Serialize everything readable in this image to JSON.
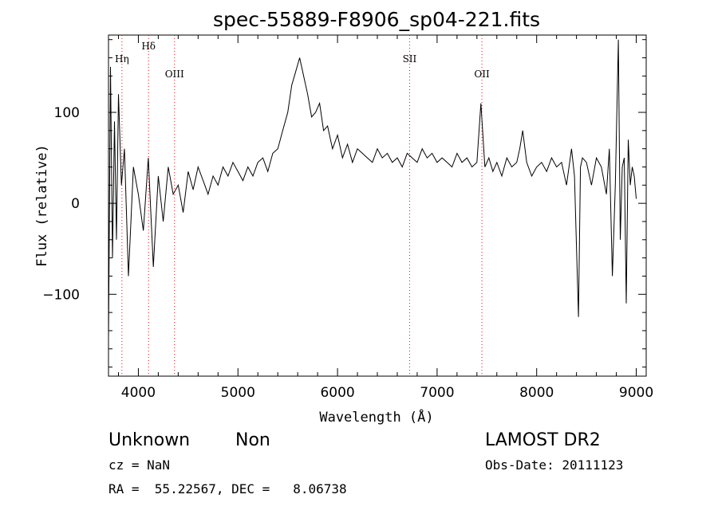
{
  "chart_data": {
    "type": "line",
    "title": "spec-55889-F8906_sp04-221.fits",
    "xlabel": "Wavelength (Å)",
    "ylabel": "Flux (relative)",
    "xlim": [
      3700,
      9100
    ],
    "ylim": [
      -190,
      185
    ],
    "x_ticks": [
      4000,
      5000,
      6000,
      7000,
      8000,
      9000
    ],
    "y_ticks": [
      -100,
      0,
      100
    ],
    "grid": false,
    "line_color": "#000000",
    "marker_color": "#ff0000",
    "series": [
      {
        "x": [
          3700,
          3720,
          3740,
          3760,
          3780,
          3800,
          3830,
          3860,
          3900,
          3950,
          4000,
          4050,
          4100,
          4150,
          4200,
          4250,
          4300,
          4350,
          4400,
          4450,
          4500,
          4550,
          4600,
          4650,
          4700,
          4750,
          4800,
          4850,
          4900,
          4950,
          5000,
          5050,
          5100,
          5150,
          5200,
          5250,
          5300,
          5350,
          5400,
          5450,
          5500,
          5540,
          5580,
          5620,
          5660,
          5700,
          5740,
          5780,
          5820,
          5860,
          5900,
          5950,
          6000,
          6050,
          6100,
          6150,
          6200,
          6250,
          6300,
          6350,
          6400,
          6450,
          6500,
          6550,
          6600,
          6650,
          6700,
          6750,
          6800,
          6850,
          6900,
          6950,
          7000,
          7050,
          7100,
          7150,
          7200,
          7250,
          7300,
          7350,
          7400,
          7440,
          7480,
          7520,
          7560,
          7600,
          7650,
          7700,
          7750,
          7800,
          7830,
          7860,
          7900,
          7950,
          8000,
          8050,
          8100,
          8150,
          8200,
          8250,
          8300,
          8350,
          8380,
          8420,
          8440,
          8460,
          8500,
          8550,
          8600,
          8650,
          8700,
          8730,
          8760,
          8790,
          8820,
          8840,
          8860,
          8880,
          8900,
          8920,
          8940,
          8960,
          8980,
          9000
        ],
        "y": [
          -150,
          150,
          -60,
          90,
          -40,
          120,
          20,
          60,
          -80,
          40,
          10,
          -30,
          50,
          -70,
          30,
          -20,
          40,
          10,
          20,
          -10,
          35,
          15,
          40,
          25,
          10,
          30,
          20,
          40,
          30,
          45,
          35,
          25,
          40,
          30,
          45,
          50,
          35,
          55,
          60,
          80,
          100,
          130,
          145,
          160,
          140,
          120,
          95,
          100,
          110,
          80,
          85,
          60,
          75,
          50,
          65,
          45,
          60,
          55,
          50,
          45,
          60,
          50,
          55,
          45,
          50,
          40,
          55,
          50,
          45,
          60,
          50,
          55,
          45,
          50,
          45,
          40,
          55,
          45,
          50,
          40,
          45,
          110,
          40,
          50,
          35,
          45,
          30,
          50,
          40,
          45,
          60,
          80,
          45,
          30,
          40,
          45,
          35,
          50,
          40,
          45,
          20,
          60,
          30,
          -125,
          40,
          50,
          45,
          20,
          50,
          40,
          10,
          60,
          -80,
          20,
          180,
          -40,
          40,
          50,
          -110,
          70,
          20,
          40,
          30,
          5
        ]
      }
    ],
    "line_markers": [
      {
        "label": "Hη",
        "x": 3835
      },
      {
        "label": "Hδ",
        "x": 4102
      },
      {
        "label": "OIII",
        "x": 4363
      },
      {
        "label": "SII",
        "x": 6724
      },
      {
        "label": "OII",
        "x": 7450
      }
    ]
  },
  "info": {
    "class": "Unknown",
    "subclass": "Non",
    "survey": "LAMOST DR2",
    "cz": "cz = NaN",
    "obs_date": "Obs-Date: 20111123",
    "coords": "RA =  55.22567, DEC =   8.06738"
  }
}
